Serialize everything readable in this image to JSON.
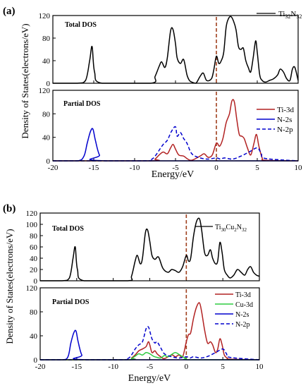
{
  "panels": [
    {
      "label": "(a)",
      "ylabel": "Density of States(electrons/eV)",
      "xlabel": "Energy/eV",
      "x_ticks": [
        -20,
        -15,
        -10,
        -5,
        0,
        5,
        10
      ],
      "total": {
        "title": "Total DOS",
        "legend": [
          "Ti",
          "32",
          "N",
          "32"
        ]
      },
      "partial": {
        "title": "Partial DOS",
        "legend": [
          "Ti-3d",
          "N-2s",
          "N-2p"
        ]
      }
    },
    {
      "label": "(b)",
      "ylabel": "Density of States(electrons/eV)",
      "xlabel": "Energy/eV",
      "x_ticks": [
        -20,
        -15,
        -10,
        -5,
        0,
        5,
        10
      ],
      "total": {
        "title": "Total DOS",
        "legend": [
          "Ti",
          "30",
          "Cu",
          "2",
          "N",
          "32"
        ]
      },
      "partial": {
        "title": "Partial DOS",
        "legend": [
          "Ti-3d",
          "Cu-3d",
          "N-2s",
          "N-2p"
        ]
      }
    }
  ],
  "chart_data": [
    {
      "type": "line",
      "panel": "(a) Total DOS",
      "xlim": [
        -20,
        10
      ],
      "ylim": [
        0,
        120
      ],
      "y_ticks": [
        0,
        40,
        80,
        120
      ],
      "fermi_level": 0,
      "series": [
        {
          "name": "Ti32N32",
          "color": "#000000",
          "style": "solid",
          "x": [
            -20,
            -17,
            -16,
            -15.5,
            -15.2,
            -14.9,
            -14,
            -8,
            -7.5,
            -7,
            -6.7,
            -6.3,
            -6,
            -5.6,
            -5.3,
            -5,
            -4.8,
            -4.4,
            -4,
            -3.6,
            -3.3,
            -3,
            -2.5,
            -2,
            -1.6,
            -1.2,
            -0.6,
            -0.3,
            0,
            0.3,
            0.6,
            0.9,
            1.2,
            1.5,
            1.8,
            2.1,
            2.4,
            2.7,
            3,
            3.3,
            3.6,
            3.9,
            4.2,
            4.5,
            4.8,
            5,
            5.3,
            5.6,
            6,
            6.5,
            7,
            7.5,
            7.8,
            8.2,
            8.6,
            9,
            9.3,
            9.6,
            10
          ],
          "y": [
            0,
            0,
            5,
            40,
            65,
            20,
            0,
            0,
            12,
            30,
            38,
            28,
            45,
            93,
            95,
            70,
            45,
            35,
            42,
            15,
            5,
            2,
            0,
            12,
            18,
            5,
            8,
            25,
            48,
            35,
            40,
            55,
            100,
            115,
            118,
            110,
            95,
            65,
            60,
            62,
            40,
            28,
            20,
            45,
            75,
            55,
            15,
            5,
            2,
            5,
            8,
            15,
            25,
            20,
            8,
            5,
            25,
            28,
            5
          ]
        }
      ]
    },
    {
      "type": "line",
      "panel": "(a) Partial DOS",
      "xlim": [
        -20,
        10
      ],
      "ylim": [
        0,
        120
      ],
      "y_ticks": [
        0,
        40,
        80,
        120
      ],
      "fermi_level": 0,
      "series": [
        {
          "name": "Ti-3d",
          "color": "#b22222",
          "style": "solid",
          "x": [
            -20,
            -8,
            -7.5,
            -7,
            -6.5,
            -6,
            -5.6,
            -5.3,
            -5,
            -4.6,
            -4,
            -3.5,
            -3,
            -2,
            -1.5,
            -1,
            -0.5,
            0,
            0.4,
            0.8,
            1.2,
            1.6,
            1.9,
            2.2,
            2.5,
            2.8,
            3.1,
            3.4,
            3.8,
            4.2,
            4.6,
            4.9,
            5.2,
            5.6,
            6,
            10
          ],
          "y": [
            0,
            0,
            3,
            10,
            15,
            12,
            22,
            28,
            20,
            10,
            8,
            3,
            1,
            8,
            12,
            6,
            10,
            30,
            25,
            38,
            65,
            80,
            102,
            100,
            70,
            45,
            42,
            38,
            22,
            10,
            30,
            45,
            25,
            5,
            1,
            0
          ]
        },
        {
          "name": "N-2s",
          "color": "#0000cd",
          "style": "solid",
          "x": [
            -20,
            -17,
            -16.2,
            -15.8,
            -15.4,
            -15.1,
            -14.8,
            -14.3,
            -13.5,
            10
          ],
          "y": [
            0,
            0,
            8,
            30,
            50,
            54,
            35,
            10,
            0,
            0
          ]
        },
        {
          "name": "N-2p",
          "color": "#0000cd",
          "style": "dashed",
          "x": [
            -20,
            -9,
            -8,
            -7.5,
            -7,
            -6.5,
            -6,
            -5.5,
            -5,
            -4.8,
            -4.4,
            -4,
            -3.6,
            -3,
            -2,
            -1,
            0,
            0.5,
            1,
            2,
            3,
            4,
            5,
            5.5,
            6,
            10
          ],
          "y": [
            0,
            0,
            2,
            8,
            18,
            28,
            35,
            50,
            58,
            42,
            48,
            38,
            30,
            12,
            5,
            3,
            5,
            3,
            5,
            3,
            8,
            15,
            22,
            12,
            4,
            0
          ]
        }
      ]
    },
    {
      "type": "line",
      "panel": "(b) Total DOS",
      "xlim": [
        -20,
        10
      ],
      "ylim": [
        0,
        120
      ],
      "y_ticks": [
        0,
        20,
        40,
        60,
        80,
        100,
        120
      ],
      "fermi_level": 0,
      "series": [
        {
          "name": "Ti30Cu2N32",
          "color": "#000000",
          "style": "solid",
          "x": [
            -20,
            -17,
            -16,
            -15.5,
            -15.2,
            -14.9,
            -14,
            -8,
            -7.5,
            -7,
            -6.7,
            -6.3,
            -6,
            -5.6,
            -5.3,
            -5,
            -4.7,
            -4.3,
            -3.8,
            -3.2,
            -2.5,
            -2,
            -1.5,
            -1,
            -0.5,
            0,
            0.3,
            0.6,
            1,
            1.4,
            1.8,
            2.1,
            2.5,
            2.9,
            3.3,
            3.6,
            4,
            4.3,
            4.6,
            4.9,
            5.2,
            5.6,
            6,
            6.5,
            7,
            7.5,
            8,
            8.4,
            8.8,
            9.2,
            9.6,
            10
          ],
          "y": [
            0,
            0,
            5,
            40,
            60,
            20,
            0,
            0,
            8,
            35,
            45,
            30,
            40,
            85,
            90,
            70,
            45,
            38,
            42,
            22,
            15,
            20,
            18,
            15,
            25,
            45,
            35,
            40,
            80,
            105,
            110,
            90,
            50,
            45,
            55,
            40,
            30,
            35,
            68,
            50,
            20,
            10,
            5,
            10,
            20,
            15,
            10,
            20,
            25,
            15,
            10,
            8
          ]
        }
      ]
    },
    {
      "type": "line",
      "panel": "(b) Partial DOS",
      "xlim": [
        -20,
        10
      ],
      "ylim": [
        0,
        120
      ],
      "y_ticks": [
        0,
        40,
        80,
        120
      ],
      "fermi_level": 0,
      "series": [
        {
          "name": "Ti-3d",
          "color": "#b22222",
          "style": "solid",
          "x": [
            -20,
            -8,
            -7.5,
            -7,
            -6.5,
            -6,
            -5.5,
            -5.2,
            -5,
            -4.7,
            -4.3,
            -4,
            -3.5,
            -3,
            -2,
            -1.5,
            -1,
            -0.5,
            0,
            0.3,
            0.6,
            1,
            1.4,
            1.8,
            2.1,
            2.5,
            2.9,
            3.3,
            3.6,
            4,
            4.3,
            4.6,
            4.9,
            5.2,
            5.6,
            6,
            10
          ],
          "y": [
            0,
            0,
            3,
            8,
            15,
            18,
            22,
            30,
            25,
            12,
            15,
            10,
            5,
            2,
            8,
            5,
            8,
            5,
            30,
            42,
            45,
            70,
            88,
            95,
            80,
            50,
            28,
            30,
            25,
            12,
            18,
            35,
            25,
            8,
            3,
            1,
            0
          ]
        },
        {
          "name": "Cu-3d",
          "color": "#2ecc40",
          "style": "solid",
          "x": [
            -20,
            -8,
            -7.5,
            -7,
            -6.5,
            -6,
            -5.5,
            -5,
            -4.5,
            -4,
            -3.5,
            -3,
            -2.5,
            -2,
            -1.5,
            -1,
            -0.5,
            0,
            0.5,
            10
          ],
          "y": [
            0,
            0,
            2,
            6,
            10,
            8,
            12,
            10,
            6,
            4,
            3,
            7,
            5,
            9,
            12,
            9,
            5,
            2,
            0,
            0
          ]
        },
        {
          "name": "N-2s",
          "color": "#0000cd",
          "style": "solid",
          "x": [
            -20,
            -17,
            -16.2,
            -15.8,
            -15.4,
            -15.1,
            -14.8,
            -14.3,
            -13.5,
            10
          ],
          "y": [
            0,
            0,
            5,
            28,
            45,
            48,
            30,
            8,
            0,
            0
          ]
        },
        {
          "name": "N-2p",
          "color": "#0000cd",
          "style": "dashed",
          "x": [
            -20,
            -9,
            -8,
            -7.5,
            -7,
            -6.5,
            -6,
            -5.5,
            -5.2,
            -5,
            -4.7,
            -4.3,
            -4,
            -3.5,
            -3,
            -2,
            -1,
            0,
            0.5,
            1,
            2,
            3,
            4,
            5,
            5.5,
            6,
            10
          ],
          "y": [
            0,
            0,
            2,
            8,
            18,
            25,
            30,
            52,
            55,
            48,
            35,
            28,
            30,
            20,
            10,
            5,
            3,
            5,
            3,
            5,
            3,
            6,
            12,
            18,
            10,
            4,
            0
          ]
        }
      ]
    }
  ]
}
